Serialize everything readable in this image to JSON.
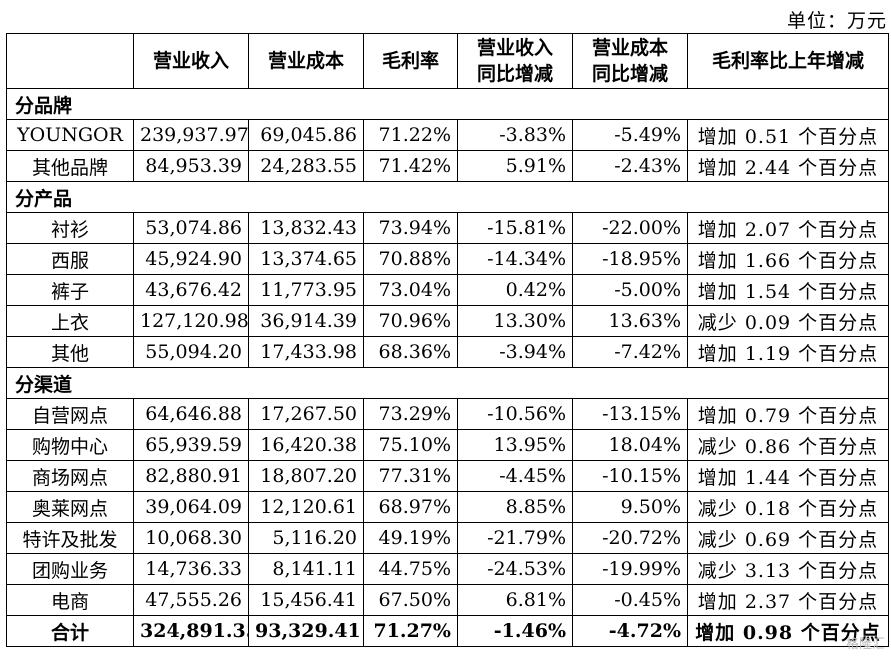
{
  "unit": "单位：万元",
  "headers": [
    "",
    "营业收入",
    "营业成本",
    "毛利率",
    "营业收入同比增减",
    "营业成本同比增减",
    "毛利率比上年增减"
  ],
  "rows": [
    {
      "type": "section",
      "label": "分品牌"
    },
    {
      "type": "data",
      "cells": [
        "YOUNGOR",
        "239,937.97",
        "69,045.86",
        "71.22%",
        "-3.83%",
        "-5.49%",
        "增加 0.51 个百分点"
      ]
    },
    {
      "type": "data",
      "cells": [
        "其他品牌",
        "84,953.39",
        "24,283.55",
        "71.42%",
        "5.91%",
        "-2.43%",
        "增加 2.44 个百分点"
      ]
    },
    {
      "type": "section",
      "label": "分产品"
    },
    {
      "type": "data",
      "cells": [
        "衬衫",
        "53,074.86",
        "13,832.43",
        "73.94%",
        "-15.81%",
        "-22.00%",
        "增加 2.07 个百分点"
      ]
    },
    {
      "type": "data",
      "cells": [
        "西服",
        "45,924.90",
        "13,374.65",
        "70.88%",
        "-14.34%",
        "-18.95%",
        "增加 1.66 个百分点"
      ]
    },
    {
      "type": "data",
      "cells": [
        "裤子",
        "43,676.42",
        "11,773.95",
        "73.04%",
        "0.42%",
        "-5.00%",
        "增加 1.54 个百分点"
      ]
    },
    {
      "type": "data",
      "cells": [
        "上衣",
        "127,120.98",
        "36,914.39",
        "70.96%",
        "13.30%",
        "13.63%",
        "减少 0.09 个百分点"
      ]
    },
    {
      "type": "data",
      "cells": [
        "其他",
        "55,094.20",
        "17,433.98",
        "68.36%",
        "-3.94%",
        "-7.42%",
        "增加 1.19 个百分点"
      ]
    },
    {
      "type": "section",
      "label": "分渠道"
    },
    {
      "type": "data",
      "cells": [
        "自营网点",
        "64,646.88",
        "17,267.50",
        "73.29%",
        "-10.56%",
        "-13.15%",
        "增加 0.79 个百分点"
      ]
    },
    {
      "type": "data",
      "cells": [
        "购物中心",
        "65,939.59",
        "16,420.38",
        "75.10%",
        "13.95%",
        "18.04%",
        "减少 0.86 个百分点"
      ]
    },
    {
      "type": "data",
      "cells": [
        "商场网点",
        "82,880.91",
        "18,807.20",
        "77.31%",
        "-4.45%",
        "-10.15%",
        "增加 1.44 个百分点"
      ]
    },
    {
      "type": "data",
      "cells": [
        "奥莱网点",
        "39,064.09",
        "12,120.61",
        "68.97%",
        "8.85%",
        "9.50%",
        "减少 0.18 个百分点"
      ]
    },
    {
      "type": "data",
      "cells": [
        "特许及批发",
        "10,068.30",
        "5,116.20",
        "49.19%",
        "-21.79%",
        "-20.72%",
        "减少 0.69 个百分点"
      ]
    },
    {
      "type": "data",
      "cells": [
        "团购业务",
        "14,736.33",
        "8,141.11",
        "44.75%",
        "-24.53%",
        "-19.99%",
        "减少 3.13 个百分点"
      ]
    },
    {
      "type": "data",
      "cells": [
        "电商",
        "47,555.26",
        "15,456.41",
        "67.50%",
        "6.81%",
        "-0.45%",
        "增加 2.37 个百分点"
      ]
    },
    {
      "type": "total",
      "cells": [
        "合计",
        "324,891.35",
        "93,329.41",
        "71.27%",
        "-1.46%",
        "-4.72%",
        "增加 0.98 个百分点"
      ]
    }
  ],
  "watermark": "格隆汇"
}
